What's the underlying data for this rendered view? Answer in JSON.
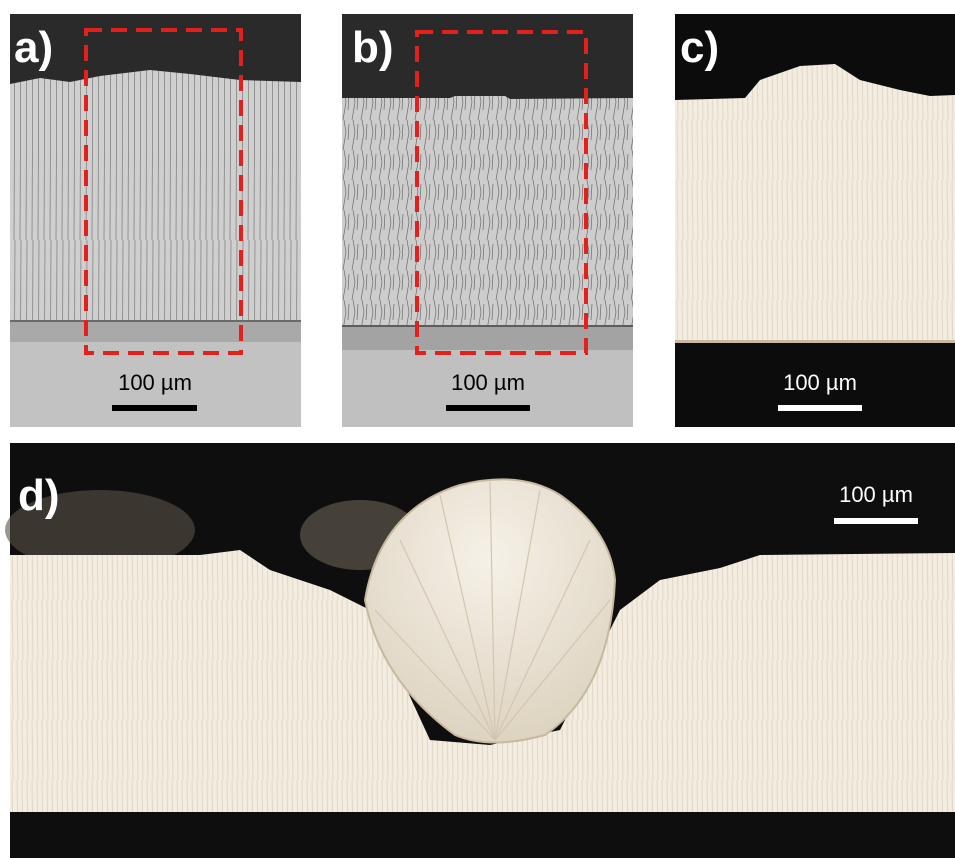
{
  "panels": [
    {
      "label": "a)",
      "scale_bar": "100 µm"
    },
    {
      "label": "b)",
      "scale_bar": "100 µm"
    },
    {
      "label": "c)",
      "scale_bar": "100 µm"
    },
    {
      "label": "d)",
      "scale_bar": "100 µm"
    }
  ]
}
